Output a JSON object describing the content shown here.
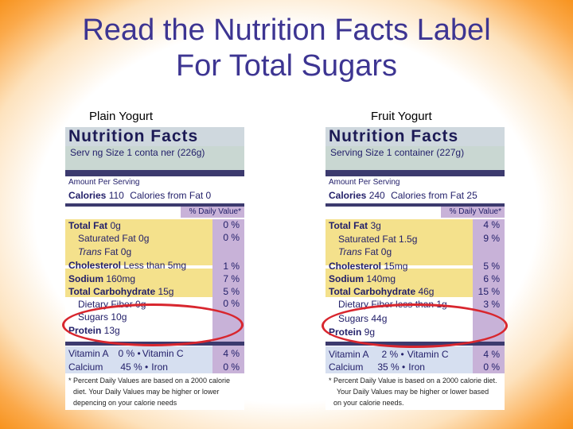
{
  "title_line1": "Read the Nutrition Facts Label",
  "title_line2": "For Total Sugars",
  "left": {
    "heading": "Plain Yogurt",
    "nf_title": "Nutrition Facts",
    "serving": "Serv ng Size 1 conta ner (226g)",
    "amount": "Amount Per Serving",
    "calories_label": "Calories",
    "calories_value": "110",
    "calories_fat": "Calories from Fat  0",
    "dv_head": "% Daily Value*",
    "rows": [
      {
        "label": "Total Fat",
        "value": " 0g",
        "pct": "0 %"
      },
      {
        "label": "Saturated Fat",
        "value": " 0g",
        "pct": "0 %"
      },
      {
        "label": "Trans",
        "value": " Fat  0g",
        "pct": ""
      },
      {
        "label": "Cholesterol",
        "value": " Less than 5mg",
        "pct": "1 %"
      },
      {
        "label": "Sodium",
        "value": " 160mg",
        "pct": "7 %"
      },
      {
        "label": "Total Carbohydrate",
        "value": " 15g",
        "pct": "5 %"
      },
      {
        "label": "Dietary Fiber",
        "value": " 0g",
        "pct": "0 %"
      },
      {
        "label": "Sugars",
        "value": " 10g",
        "pct": ""
      },
      {
        "label": "Protein",
        "value": " 13g",
        "pct": ""
      }
    ],
    "vit_a": "Vitamin A",
    "vit_a_pct": "0 % •",
    "vit_c": "Vitamin C",
    "vit_c_pct": "4 %",
    "calcium": "Calcium",
    "calcium_pct": "45 % •",
    "iron": "Iron",
    "iron_pct": "0 %",
    "foot1": "* Percent Daily Values are based on a 2000 calorie",
    "foot2": "diet.  Your Daily Values may be higher or lower",
    "foot3": "depencing on your calorie needs"
  },
  "right": {
    "heading": "Fruit Yogurt",
    "nf_title": "Nutrition Facts",
    "serving": "Serving Size 1 container (227g)",
    "amount": "Amount Per Serving",
    "calories_label": "Calories",
    "calories_value": "240",
    "calories_fat": "Calories from Fat 25",
    "dv_head": "% Daily Value*",
    "rows": [
      {
        "label": "Total Fat",
        "value": " 3g",
        "pct": "4 %"
      },
      {
        "label": "Saturated Fat",
        "value": "  1.5g",
        "pct": "9 %"
      },
      {
        "label": "Trans",
        "value": " Fat  0g",
        "pct": ""
      },
      {
        "label": "Cholesterol",
        "value": " 15mg",
        "pct": "5 %"
      },
      {
        "label": "Sodium",
        "value": " 140mg",
        "pct": "6 %"
      },
      {
        "label": "Total Carbohydrate",
        "value": " 46g",
        "pct": "15 %"
      },
      {
        "label": "Dietary Fiber",
        "value": "  less than 1g",
        "pct": "3 %"
      },
      {
        "label": "Sugars",
        "value": " 44g",
        "pct": ""
      },
      {
        "label": "Protein",
        "value": " 9g",
        "pct": ""
      }
    ],
    "vit_a": "Vitamin A",
    "vit_a_pct": "2 % •",
    "vit_c": "Vitamin C",
    "vit_c_pct": "4 %",
    "calcium": "Calcium",
    "calcium_pct": "35 % •",
    "iron": "Iron",
    "iron_pct": "0 %",
    "foot1": "* Percent Daily Value is based on a 2000 calorie diet.",
    "foot2": "Your Daily Values may be higher or lower based",
    "foot3": "on your calorie needs."
  },
  "colors": {
    "title": "#3d3592",
    "highlight_oval": "#d8262e",
    "section_yellow": "#f4e18c",
    "dv_purple": "#c8b2d8"
  }
}
